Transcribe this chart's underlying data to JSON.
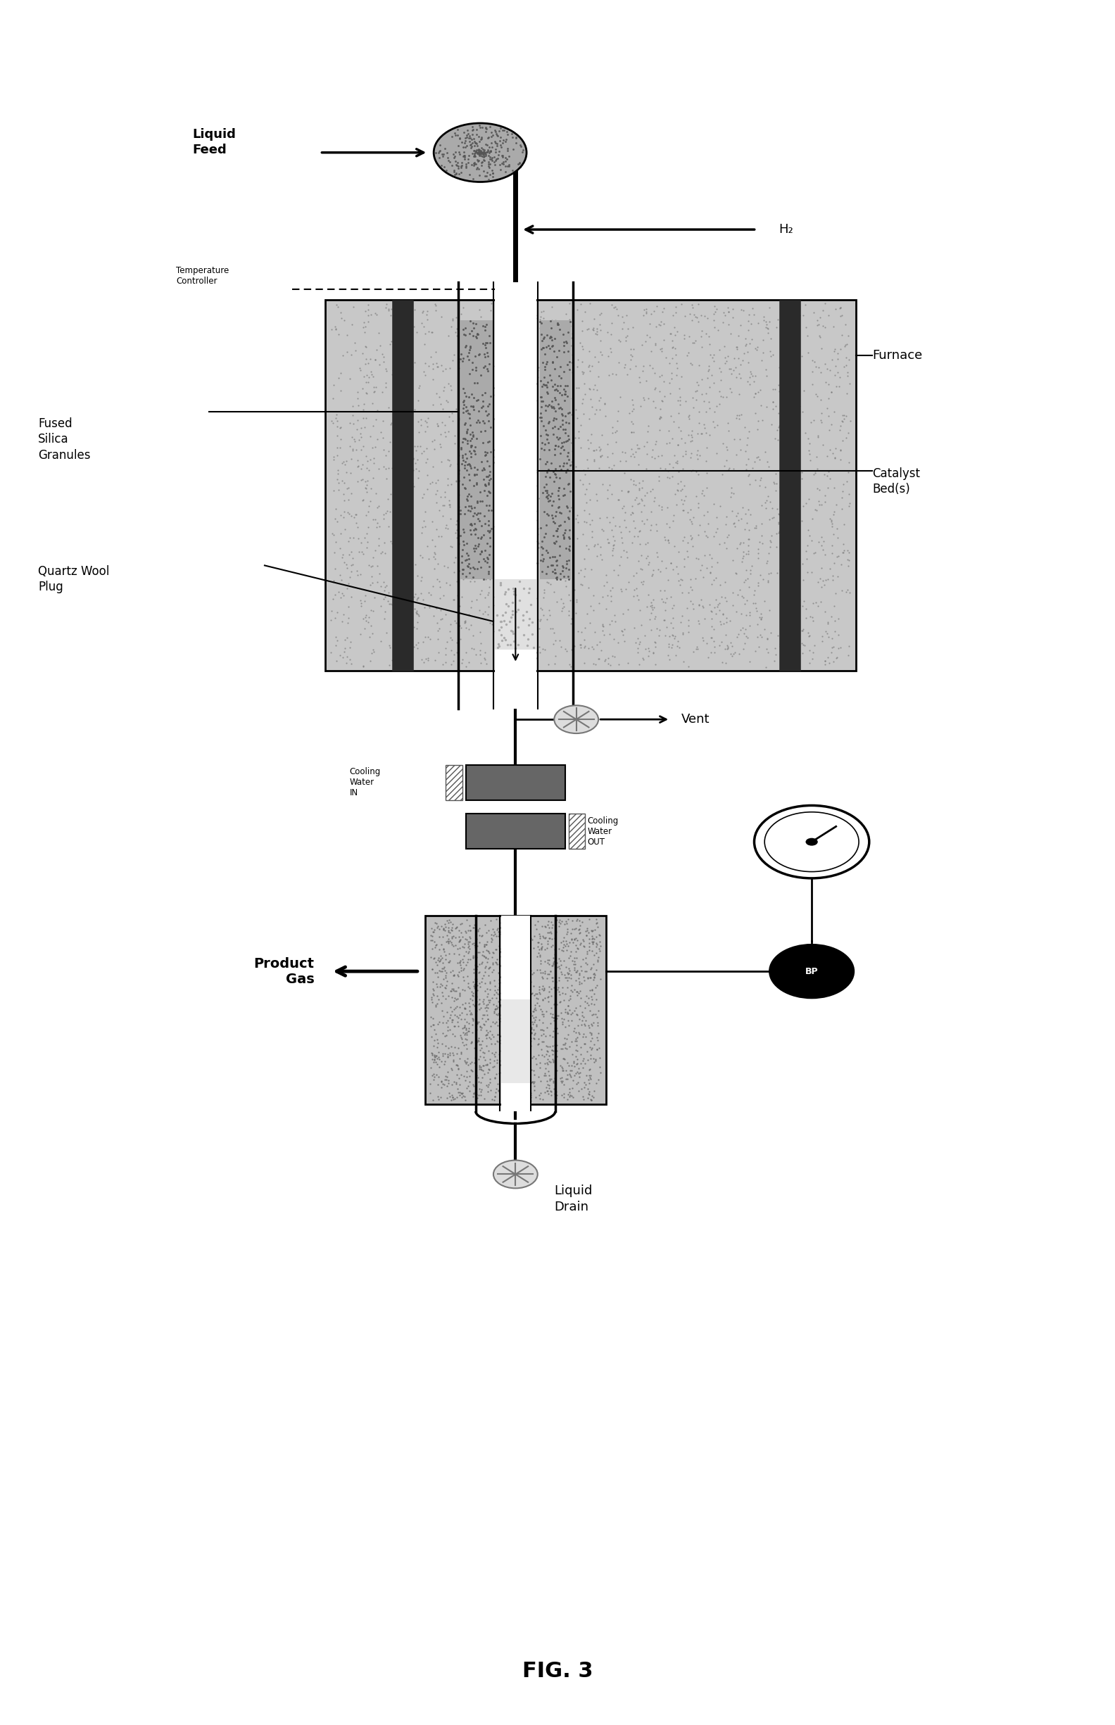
{
  "fig_width": 15.84,
  "fig_height": 24.51,
  "bg_color": "#ffffff",
  "title": "FIG. 3",
  "labels": {
    "liquid_feed": "Liquid\nFeed",
    "h2": "H₂",
    "temperature_controller": "Temperature\nController",
    "furnace": "Furnace",
    "fused_silica": "Fused\nSilica\nGranules",
    "catalyst_bed": "Catalyst\nBed(s)",
    "quartz_wool": "Quartz Wool\nPlug",
    "vent": "Vent",
    "cooling_water_in": "Cooling\nWater\nIN",
    "cooling_water_out": "Cooling\nWater\nOUT",
    "product_gas": "Product\nGas",
    "liquid_drain": "Liquid\nDrain",
    "bp": "BP"
  },
  "colors": {
    "black": "#000000",
    "dark_gray": "#444444",
    "medium_gray": "#888888",
    "light_gray": "#cccccc",
    "furnace_bg": "#c8c8c8",
    "white": "#ffffff"
  }
}
